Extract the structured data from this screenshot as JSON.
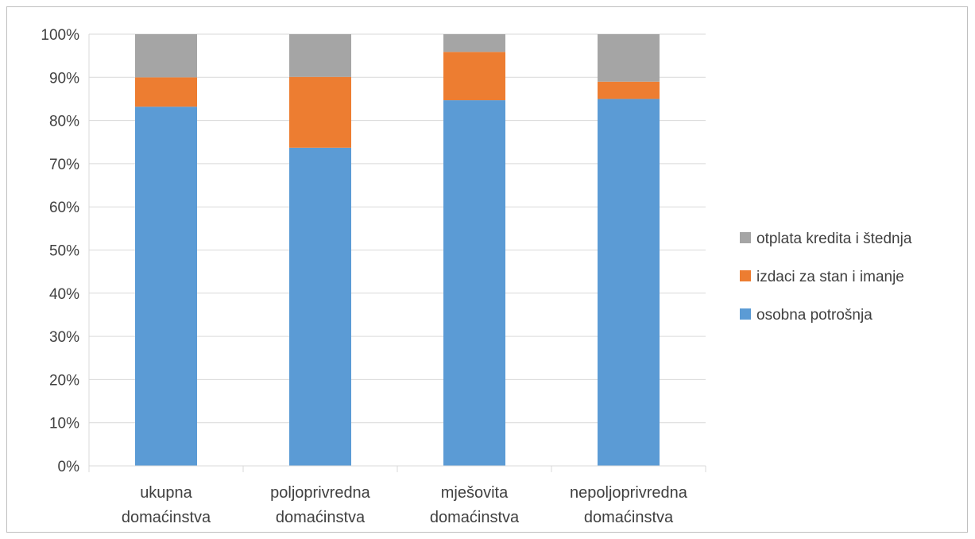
{
  "chart_data": {
    "type": "bar",
    "stacked": true,
    "percent_stacked": true,
    "title": "",
    "xlabel": "",
    "ylabel": "",
    "ylim": [
      0,
      100
    ],
    "yticks": [
      "0%",
      "10%",
      "20%",
      "30%",
      "40%",
      "50%",
      "60%",
      "70%",
      "80%",
      "90%",
      "100%"
    ],
    "grid": true,
    "legend_position": "right",
    "categories": [
      [
        "ukupna",
        "domaćinstva"
      ],
      [
        "poljoprivredna",
        "domaćinstva"
      ],
      [
        "mješovita",
        "domaćinstva"
      ],
      [
        "nepoljoprivredna",
        "domaćinstva"
      ]
    ],
    "series": [
      {
        "name": "osobna potrošnja",
        "color": "#5b9bd5",
        "values": [
          83.2,
          73.7,
          84.7,
          85.0
        ]
      },
      {
        "name": "izdaci za stan i imanje",
        "color": "#ed7d31",
        "values": [
          6.8,
          16.4,
          11.2,
          4.0
        ]
      },
      {
        "name": "otplata kredita i štednja",
        "color": "#a5a5a5",
        "values": [
          10.0,
          9.9,
          4.1,
          11.0
        ]
      }
    ],
    "legend_order": [
      2,
      1,
      0
    ]
  }
}
